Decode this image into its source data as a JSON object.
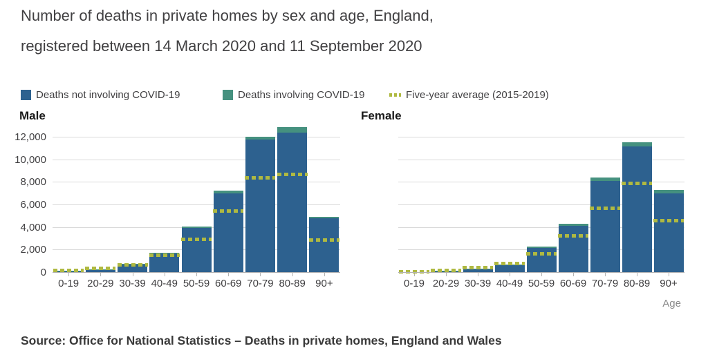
{
  "title": {
    "line1": "Number of deaths in private homes by sex and age, England,",
    "line2": "registered between 14 March 2020 and 11 September 2020"
  },
  "legend": {
    "items": [
      {
        "label": "Deaths not involving COVID-19",
        "color": "#2d618f",
        "type": "square"
      },
      {
        "label": "Deaths involving COVID-19",
        "color": "#45917f",
        "type": "square"
      },
      {
        "label": "Five-year average (2015-2019)",
        "color": "#afb941",
        "type": "dash"
      }
    ]
  },
  "chart_data": {
    "type": "bar",
    "stacked": true,
    "grid": true,
    "legend_position": "top",
    "title": "Number of deaths in private homes by sex and age, England, registered between 14 March 2020 and 11 September 2020",
    "xlabel": "Age",
    "ylabel": "",
    "ylim": [
      0,
      13000
    ],
    "yticks": [
      0,
      2000,
      4000,
      6000,
      8000,
      10000,
      12000
    ],
    "categories": [
      "0-19",
      "20-29",
      "30-39",
      "40-49",
      "50-59",
      "60-69",
      "70-79",
      "80-89",
      "90+"
    ],
    "colors": {
      "not_covid": "#2d618f",
      "covid": "#45917f",
      "average": "#afb941"
    },
    "panels": [
      {
        "title": "Male",
        "show_y_labels": true,
        "series": [
          {
            "name": "Deaths not involving COVID-19",
            "type": "bar",
            "values": [
              150,
              300,
              750,
              1750,
              3950,
              7050,
              11800,
              12450,
              4850
            ]
          },
          {
            "name": "Deaths involving COVID-19",
            "type": "bar",
            "values": [
              10,
              15,
              25,
              40,
              150,
              250,
              250,
              450,
              130
            ]
          },
          {
            "name": "Five-year average (2015-2019)",
            "type": "dashed-line",
            "values": [
              200,
              400,
              700,
              1550,
              3000,
              5500,
              8400,
              8700,
              2900
            ]
          }
        ]
      },
      {
        "title": "Female",
        "show_y_labels": false,
        "series": [
          {
            "name": "Deaths not involving COVID-19",
            "type": "bar",
            "values": [
              70,
              160,
              330,
              700,
              2200,
              4150,
              8150,
              11200,
              7050
            ]
          },
          {
            "name": "Deaths involving COVID-19",
            "type": "bar",
            "values": [
              5,
              10,
              15,
              30,
              120,
              180,
              280,
              380,
              300
            ]
          },
          {
            "name": "Five-year average (2015-2019)",
            "type": "dashed-line",
            "values": [
              120,
              220,
              430,
              830,
              1700,
              3250,
              5700,
              7900,
              4600
            ]
          }
        ]
      }
    ]
  },
  "footer": {
    "source": "Source: Office for National Statistics – Deaths in private homes, England and Wales"
  }
}
